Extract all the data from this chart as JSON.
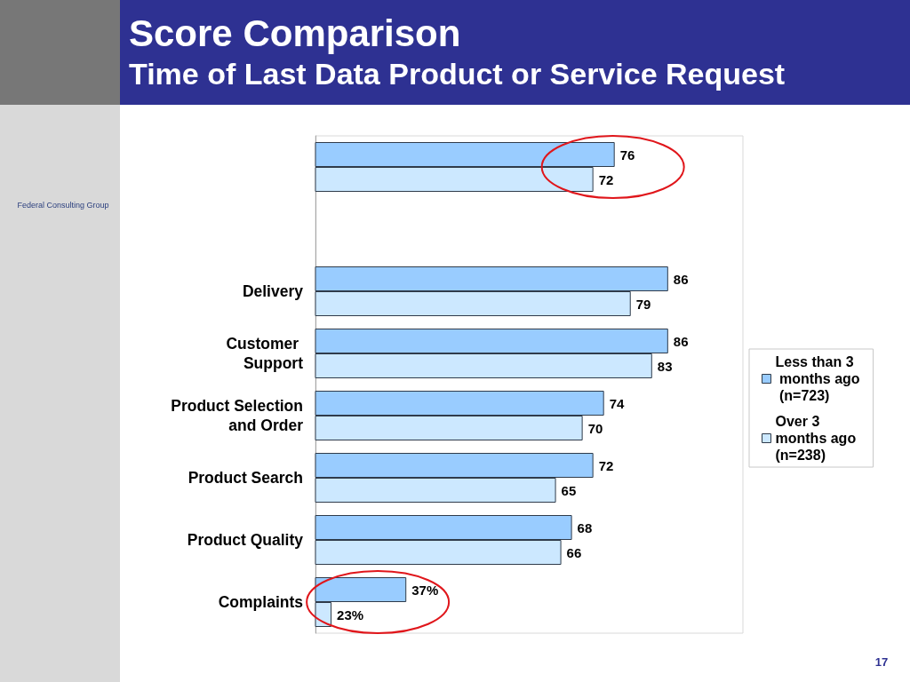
{
  "chart_data": {
    "type": "bar",
    "orientation": "horizontal",
    "title": "Score Comparison",
    "subtitle": "Time of Last Data Product or Service Request",
    "categories": [
      null,
      null,
      "Delivery",
      "Customer Support",
      "Product Selection and Order",
      "Product Search",
      "Product Quality",
      "Complaints"
    ],
    "series": [
      {
        "name": "Less than 3 months ago (n=723)",
        "color": "#99ccff",
        "values": [
          76,
          null,
          86,
          86,
          74,
          72,
          68,
          37
        ],
        "value_labels": [
          "76",
          null,
          "86",
          "86",
          "74",
          "72",
          "68",
          "37%"
        ]
      },
      {
        "name": "Over 3 months ago (n=238)",
        "color": "#cce8ff",
        "values": [
          72,
          null,
          79,
          83,
          70,
          65,
          66,
          23
        ],
        "value_labels": [
          "72",
          null,
          "79",
          "83",
          "70",
          "65",
          "66",
          "23%"
        ]
      }
    ],
    "xlim": [
      20,
      100
    ],
    "tick_labels": "y",
    "legend": "right",
    "annotations": [
      "Federal Consulting Group",
      "17"
    ]
  }
}
